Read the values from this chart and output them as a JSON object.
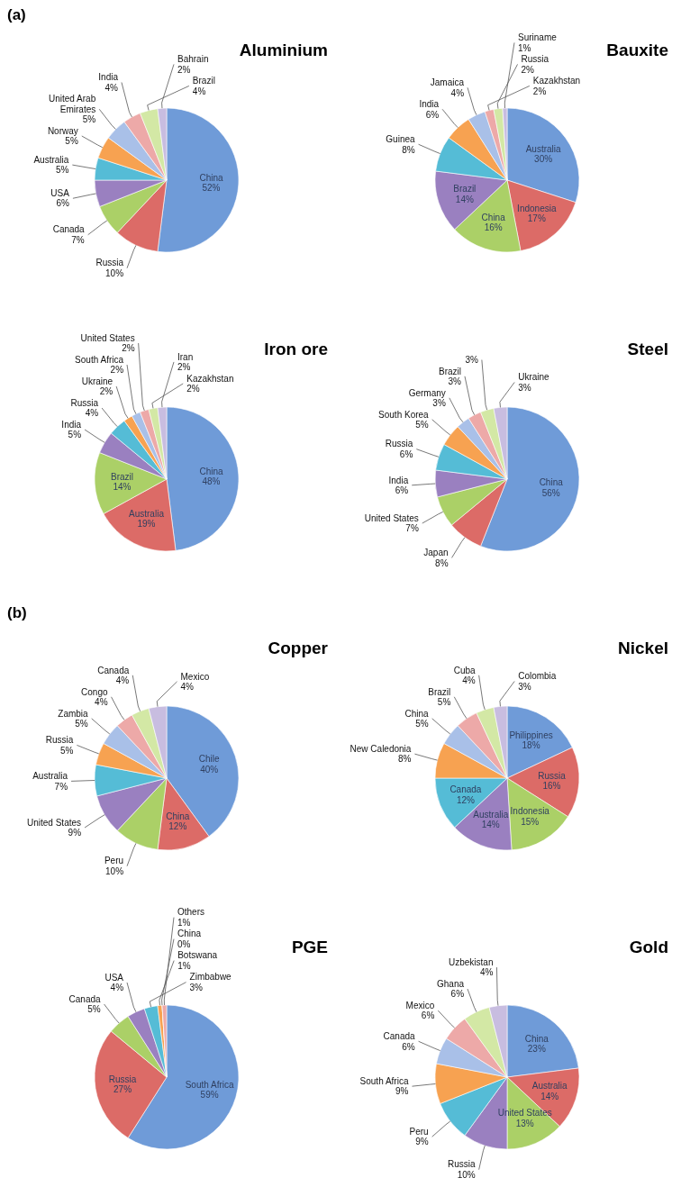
{
  "chart_data": [
    {
      "type": "pie",
      "title": "Aluminium",
      "annotations": [
        "(a)"
      ],
      "categories": [
        "China",
        "Russia",
        "Canada",
        "USA",
        "Australia",
        "Norway",
        "United Arab Emirates",
        "India",
        "Brazil",
        "Bahrain"
      ],
      "values": [
        52,
        10,
        7,
        6,
        5,
        5,
        5,
        4,
        4,
        2
      ],
      "value_labels": [
        "52%",
        "10%",
        "7%",
        "6%",
        "5%",
        "5%",
        "5%",
        "4%",
        "4%",
        "2%"
      ],
      "colors": [
        "#6f9bd8",
        "#dc6b67",
        "#abd067",
        "#9a80c0",
        "#55bcd6",
        "#f7a251",
        "#a9c0e8",
        "#eda9a8",
        "#d3e8a5",
        "#c8bde0"
      ]
    },
    {
      "type": "pie",
      "title": "Bauxite",
      "categories": [
        "Australia",
        "Indonesia",
        "China",
        "Brazil",
        "Guinea",
        "India",
        "Jamaica",
        "Kazakhstan",
        "Russia",
        "Suriname"
      ],
      "values": [
        30,
        17,
        16,
        14,
        8,
        6,
        4,
        2,
        2,
        1
      ],
      "value_labels": [
        "30%",
        "17%",
        "16%",
        "14%",
        "8%",
        "6%",
        "4%",
        "2%",
        "2%",
        "1%"
      ],
      "colors": [
        "#6f9bd8",
        "#dc6b67",
        "#abd067",
        "#9a80c0",
        "#55bcd6",
        "#f7a251",
        "#a9c0e8",
        "#eda9a8",
        "#d3e8a5",
        "#c8bde0"
      ]
    },
    {
      "type": "pie",
      "title": "Iron ore",
      "categories": [
        "China",
        "Australia",
        "Brazil",
        "India",
        "Russia",
        "Ukraine",
        "South Africa",
        "United States",
        "Kazakhstan",
        "Iran"
      ],
      "values": [
        48,
        19,
        14,
        5,
        4,
        2,
        2,
        2,
        2,
        2
      ],
      "value_labels": [
        "48%",
        "19%",
        "14%",
        "5%",
        "4%",
        "2%",
        "2%",
        "2%",
        "2%",
        "2%"
      ],
      "colors": [
        "#6f9bd8",
        "#dc6b67",
        "#abd067",
        "#9a80c0",
        "#55bcd6",
        "#f7a251",
        "#a9c0e8",
        "#eda9a8",
        "#d3e8a5",
        "#c8bde0"
      ]
    },
    {
      "type": "pie",
      "title": "Steel",
      "categories": [
        "China",
        "Japan",
        "United States",
        "India",
        "Russia",
        "South Korea",
        "Germany",
        "Brazil",
        null,
        "Ukraine"
      ],
      "values": [
        56,
        8,
        7,
        6,
        6,
        5,
        3,
        3,
        3,
        3
      ],
      "value_labels": [
        "56%",
        "8%",
        "7%",
        "6%",
        "6%",
        "5%",
        "3%",
        "3%",
        "3%",
        "3%"
      ],
      "colors": [
        "#6f9bd8",
        "#dc6b67",
        "#abd067",
        "#9a80c0",
        "#55bcd6",
        "#f7a251",
        "#a9c0e8",
        "#eda9a8",
        "#d3e8a5",
        "#c8bde0"
      ]
    },
    {
      "type": "pie",
      "title": "Copper",
      "annotations": [
        "(b)"
      ],
      "categories": [
        "Chile",
        "China",
        "Peru",
        "United States",
        "Australia",
        "Russia",
        "Zambia",
        "Congo",
        "Canada",
        "Mexico"
      ],
      "values": [
        40,
        12,
        10,
        9,
        7,
        5,
        5,
        4,
        4,
        4
      ],
      "value_labels": [
        "40%",
        "12%",
        "10%",
        "9%",
        "7%",
        "5%",
        "5%",
        "4%",
        "4%",
        "4%"
      ],
      "colors": [
        "#6f9bd8",
        "#dc6b67",
        "#abd067",
        "#9a80c0",
        "#55bcd6",
        "#f7a251",
        "#a9c0e8",
        "#eda9a8",
        "#d3e8a5",
        "#c8bde0"
      ]
    },
    {
      "type": "pie",
      "title": "Nickel",
      "categories": [
        "Philippines",
        "Russia",
        "Indonesia",
        "Australia",
        "Canada",
        "New Caledonia",
        "China",
        "Brazil",
        "Cuba",
        "Colombia"
      ],
      "values": [
        18,
        16,
        15,
        14,
        12,
        8,
        5,
        5,
        4,
        3
      ],
      "value_labels": [
        "18%",
        "16%",
        "15%",
        "14%",
        "12%",
        "8%",
        "5%",
        "5%",
        "4%",
        "3%"
      ],
      "colors": [
        "#6f9bd8",
        "#dc6b67",
        "#abd067",
        "#9a80c0",
        "#55bcd6",
        "#f7a251",
        "#a9c0e8",
        "#eda9a8",
        "#d3e8a5",
        "#c8bde0"
      ]
    },
    {
      "type": "pie",
      "title": "PGE",
      "categories": [
        "South Africa",
        "Russia",
        "Canada",
        "USA",
        "Zimbabwe",
        "Botswana",
        "China",
        "Others"
      ],
      "values": [
        59,
        27,
        5,
        4,
        3,
        1,
        0,
        1
      ],
      "value_labels": [
        "59%",
        "27%",
        "5%",
        "4%",
        "3%",
        "1%",
        "0%",
        "1%"
      ],
      "colors": [
        "#6f9bd8",
        "#dc6b67",
        "#abd067",
        "#9a80c0",
        "#55bcd6",
        "#f7a251",
        "#a9c0e8",
        "#eda9a8"
      ]
    },
    {
      "type": "pie",
      "title": "Gold",
      "categories": [
        "China",
        "Australia",
        "United States",
        "Russia",
        "Peru",
        "South Africa",
        "Canada",
        "Mexico",
        "Ghana",
        "Uzbekistan"
      ],
      "values": [
        23,
        14,
        13,
        10,
        9,
        9,
        6,
        6,
        6,
        4
      ],
      "value_labels": [
        "23%",
        "14%",
        "13%",
        "10%",
        "9%",
        "9%",
        "6%",
        "6%",
        "6%",
        "4%"
      ],
      "colors": [
        "#6f9bd8",
        "#dc6b67",
        "#abd067",
        "#9a80c0",
        "#55bcd6",
        "#f7a251",
        "#a9c0e8",
        "#eda9a8",
        "#d3e8a5",
        "#c8bde0"
      ]
    }
  ]
}
